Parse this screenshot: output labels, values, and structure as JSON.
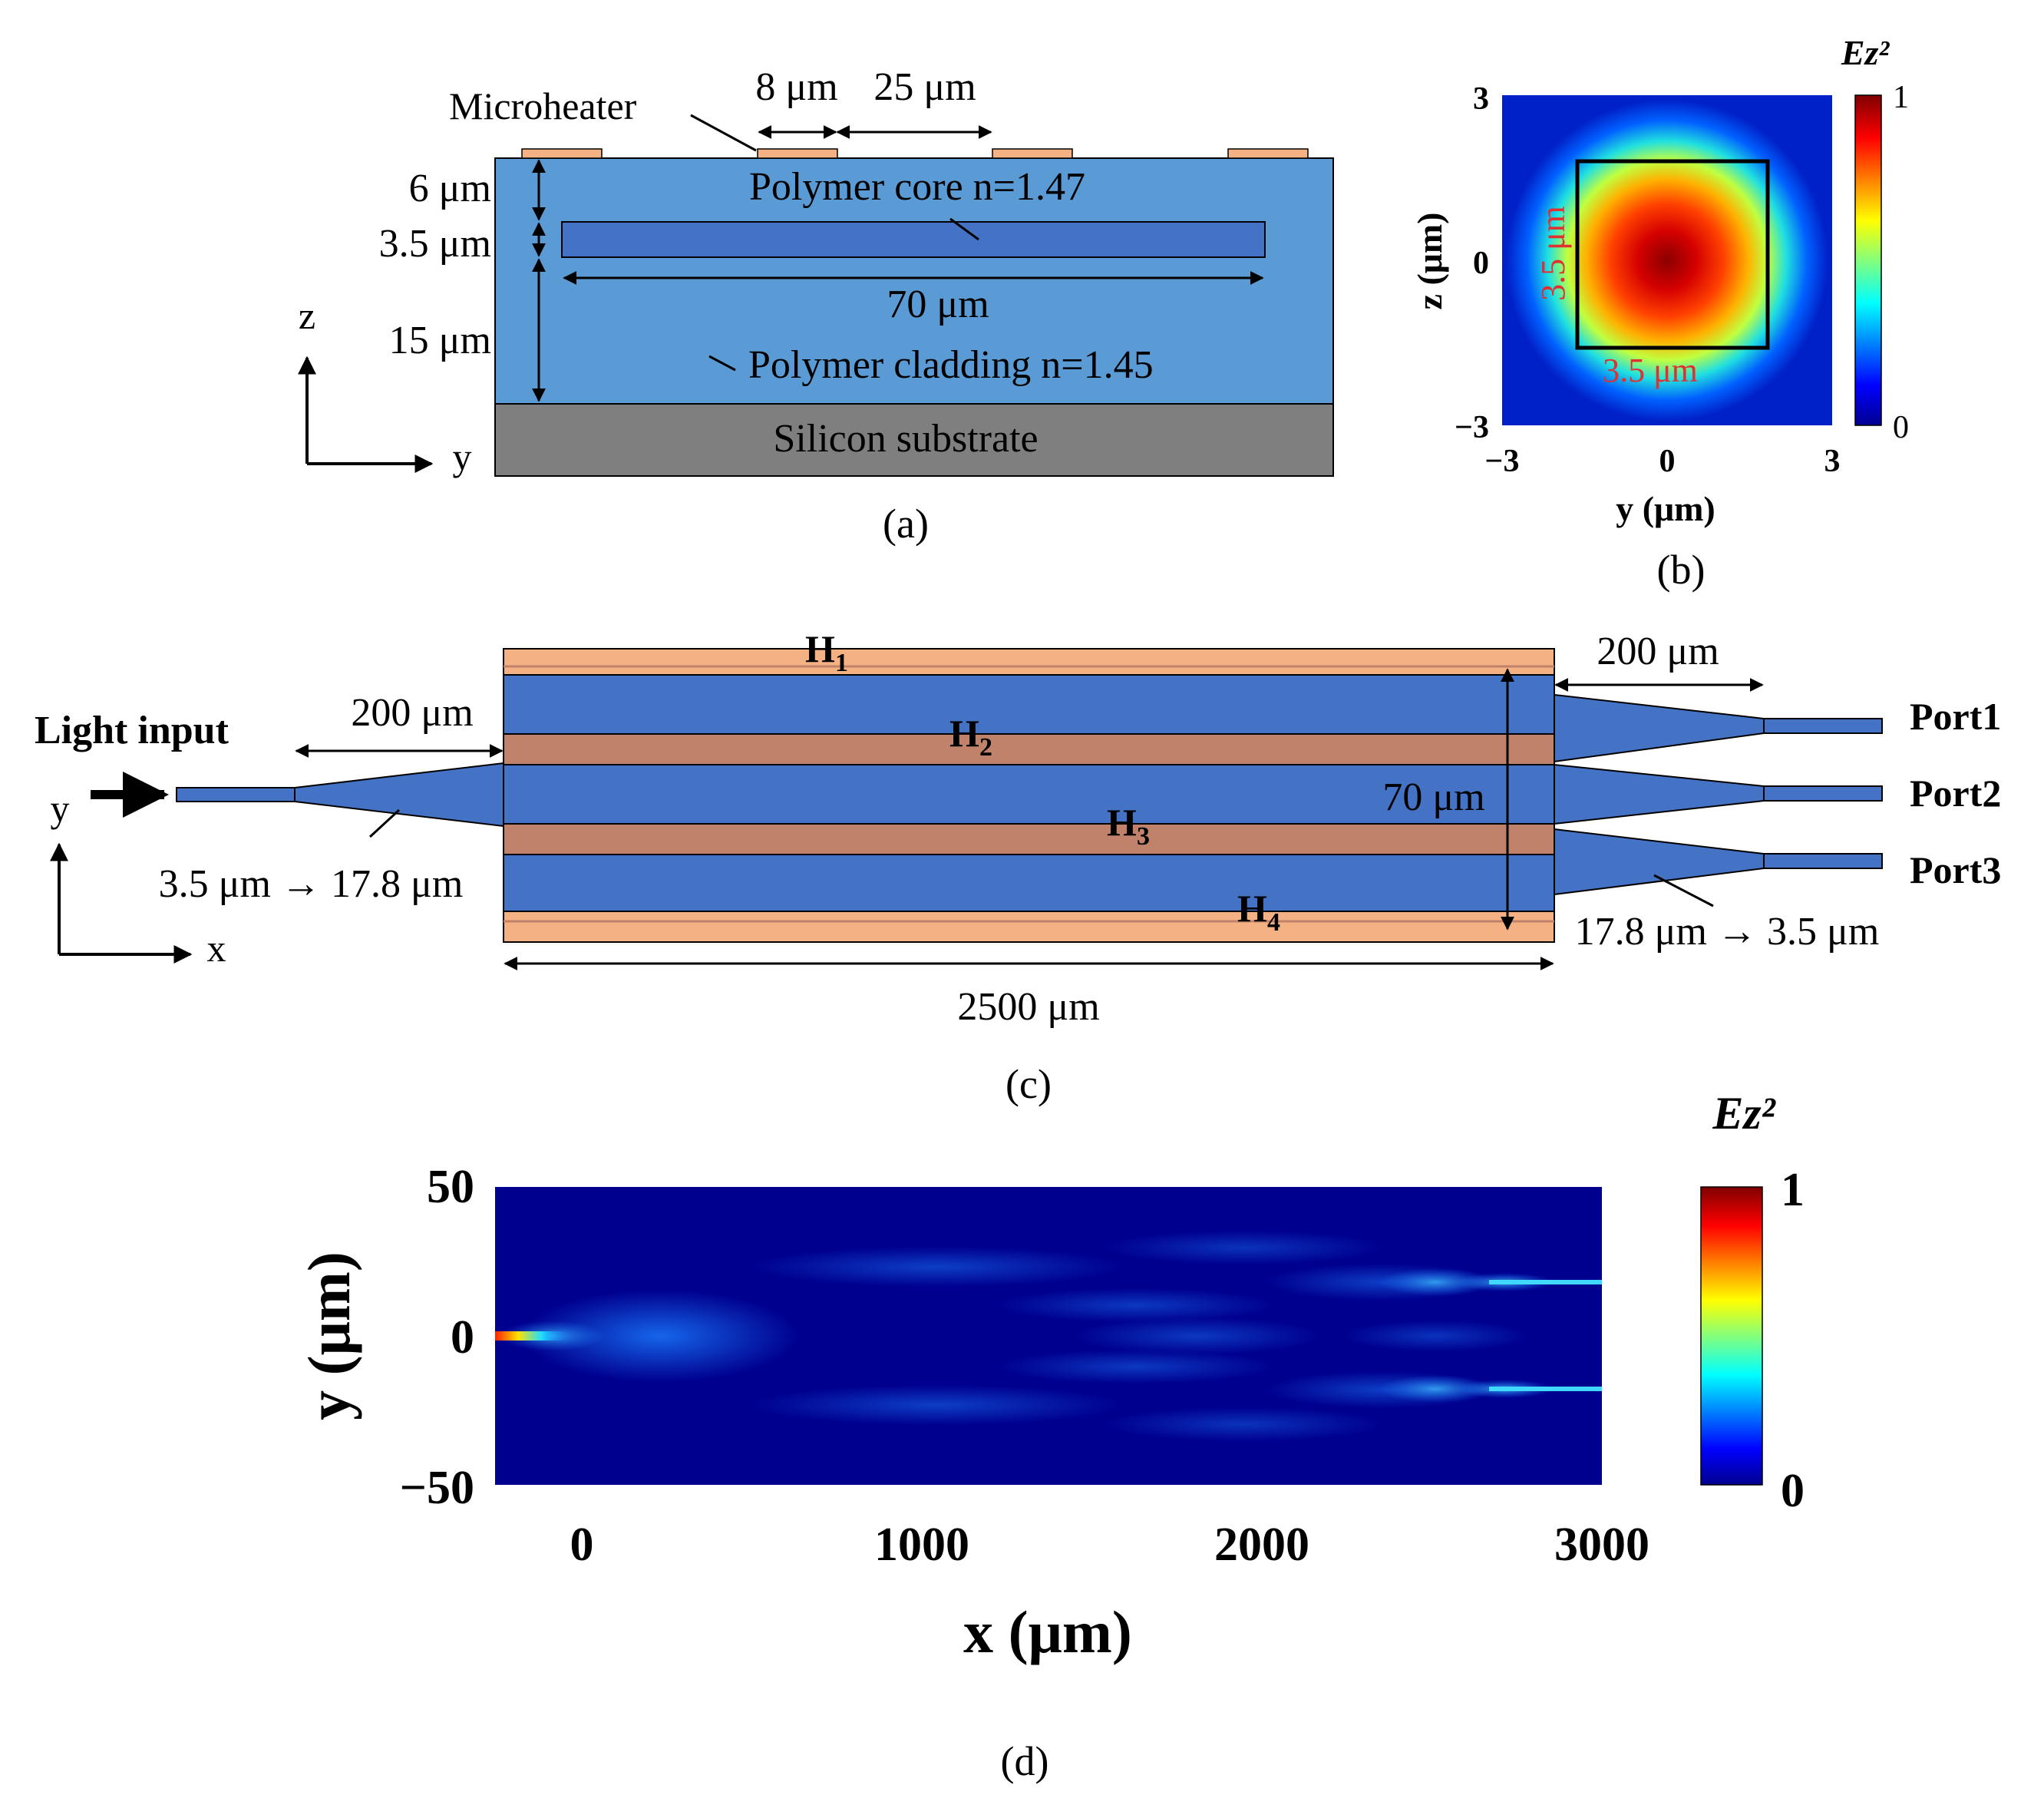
{
  "colors": {
    "cladding": "#5b9bd5",
    "core": "#4472c4",
    "heater": "#f4b183",
    "heater_dark": "#c0826a",
    "substrate": "#7f7f7f",
    "waveguide": "#4472c4",
    "label_red": "#e03030"
  },
  "panel_a": {
    "caption": "(a)",
    "microheater_label": "Microheater",
    "heater_width": "8 μm",
    "heater_gap": "25 μm",
    "dim_top": "6 μm",
    "dim_core": "3.5 μm",
    "dim_bottom": "15 μm",
    "core_width": "70 μm",
    "core_label": "Polymer core n=1.47",
    "cladding_label": "Polymer cladding n=1.45",
    "substrate_label": "Silicon substrate",
    "axis_z": "z",
    "axis_y": "y"
  },
  "panel_b": {
    "caption": "(b)",
    "colorbar_title": "Ez²",
    "colorbar_max": "1",
    "colorbar_min": "0",
    "xlabel": "y (μm)",
    "ylabel": "z (μm)",
    "x_ticks": [
      "−3",
      "0",
      "3"
    ],
    "y_ticks": [
      "3",
      "0",
      "−3"
    ],
    "core_h_label": "3.5 μm",
    "core_v_label": "3.5 μm"
  },
  "panel_c": {
    "caption": "(c)",
    "heaters": [
      "H1",
      "H2",
      "H3",
      "H4"
    ],
    "light_input": "Light input",
    "input_taper_length": "200 μm",
    "output_taper_length": "200 μm",
    "input_taper_label": "3.5 μm → 17.8 μm",
    "output_taper_label": "17.8 μm → 3.5 μm",
    "mmi_width": "70 μm",
    "mmi_length": "2500 μm",
    "ports": [
      "Port1",
      "Port2",
      "Port3"
    ],
    "axis_y": "y",
    "axis_x": "x"
  },
  "panel_d": {
    "caption": "(d)",
    "colorbar_title": "Ez²",
    "colorbar_max": "1",
    "colorbar_min": "0",
    "xlabel": "x (μm)",
    "ylabel": "y (μm)",
    "x_ticks": [
      "0",
      "1000",
      "2000",
      "3000"
    ],
    "y_ticks": [
      "50",
      "0",
      "−50"
    ]
  }
}
